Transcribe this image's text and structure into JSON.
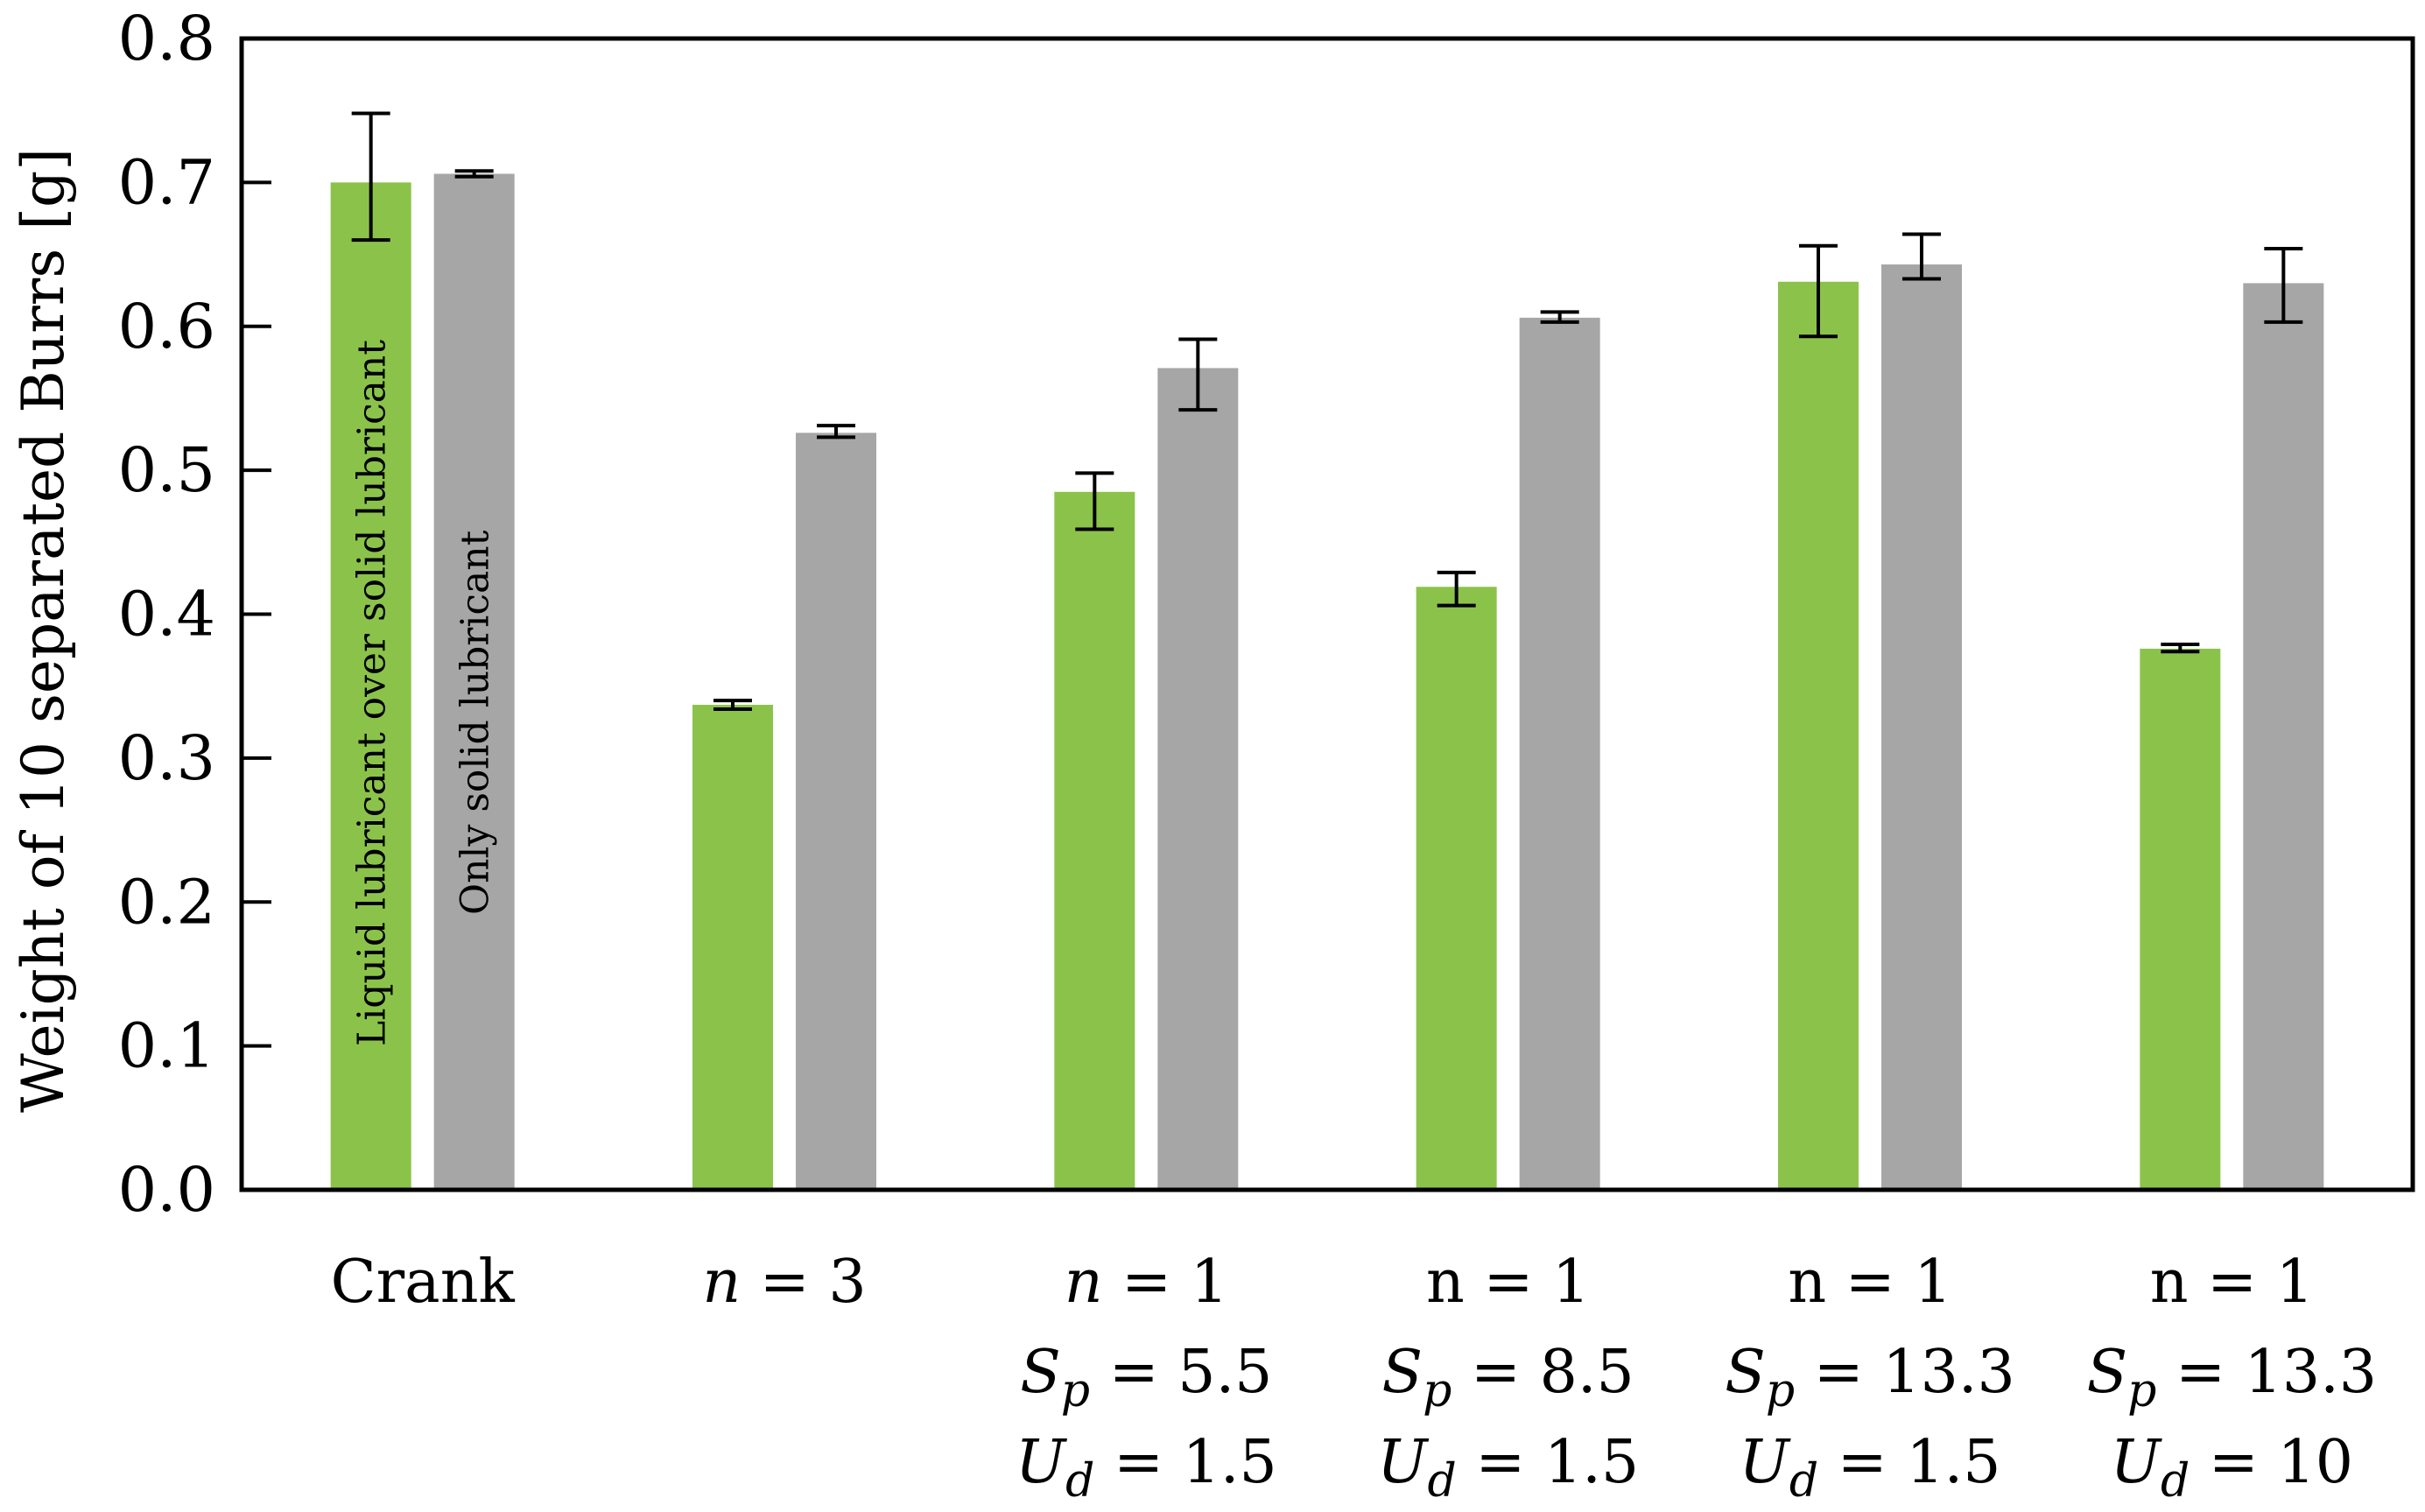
{
  "chart_data": {
    "type": "bar",
    "title": "",
    "xlabel": "",
    "ylabel": "Weight of 10 separated Burrs [g]",
    "ylim": [
      0,
      0.8
    ],
    "yticks": [
      "0.0",
      "0.1",
      "0.2",
      "0.3",
      "0.4",
      "0.5",
      "0.6",
      "0.7",
      "0.8"
    ],
    "grid": false,
    "categories": [
      {
        "lines": [
          [
            "",
            "Crank",
            ""
          ]
        ]
      },
      {
        "lines": [
          [
            "n",
            " = 3",
            ""
          ]
        ]
      },
      {
        "lines": [
          [
            "n",
            " = 1",
            ""
          ],
          [
            "S",
            "p",
            " = 5.5"
          ],
          [
            "U",
            "d",
            " = 1.5"
          ]
        ]
      },
      {
        "lines": [
          [
            "",
            "n = 1",
            ""
          ],
          [
            "S",
            "p",
            " = 8.5"
          ],
          [
            "U",
            "d",
            " = 1.5"
          ]
        ]
      },
      {
        "lines": [
          [
            "",
            "n = 1",
            ""
          ],
          [
            "S",
            "p",
            " = 13.3"
          ],
          [
            "U",
            "d",
            " = 1.5"
          ]
        ]
      },
      {
        "lines": [
          [
            "",
            "n = 1",
            ""
          ],
          [
            "S",
            "p",
            " = 13.3"
          ],
          [
            "U",
            "d",
            " = 10"
          ]
        ]
      }
    ],
    "series": [
      {
        "name": "Liquid lubricant over solid lubricant",
        "color": "#8bc34a",
        "values": [
          0.7,
          0.337,
          0.485,
          0.419,
          0.631,
          0.376
        ],
        "err_low": [
          0.66,
          0.334,
          0.459,
          0.406,
          0.593,
          0.374
        ],
        "err_high": [
          0.748,
          0.34,
          0.498,
          0.429,
          0.656,
          0.379
        ]
      },
      {
        "name": "Only solid lubricant",
        "color": "#a6a6a6",
        "values": [
          0.706,
          0.526,
          0.571,
          0.606,
          0.643,
          0.63
        ],
        "err_low": [
          0.704,
          0.523,
          0.542,
          0.603,
          0.633,
          0.603
        ],
        "err_high": [
          0.708,
          0.531,
          0.591,
          0.61,
          0.664,
          0.654
        ]
      }
    ]
  }
}
